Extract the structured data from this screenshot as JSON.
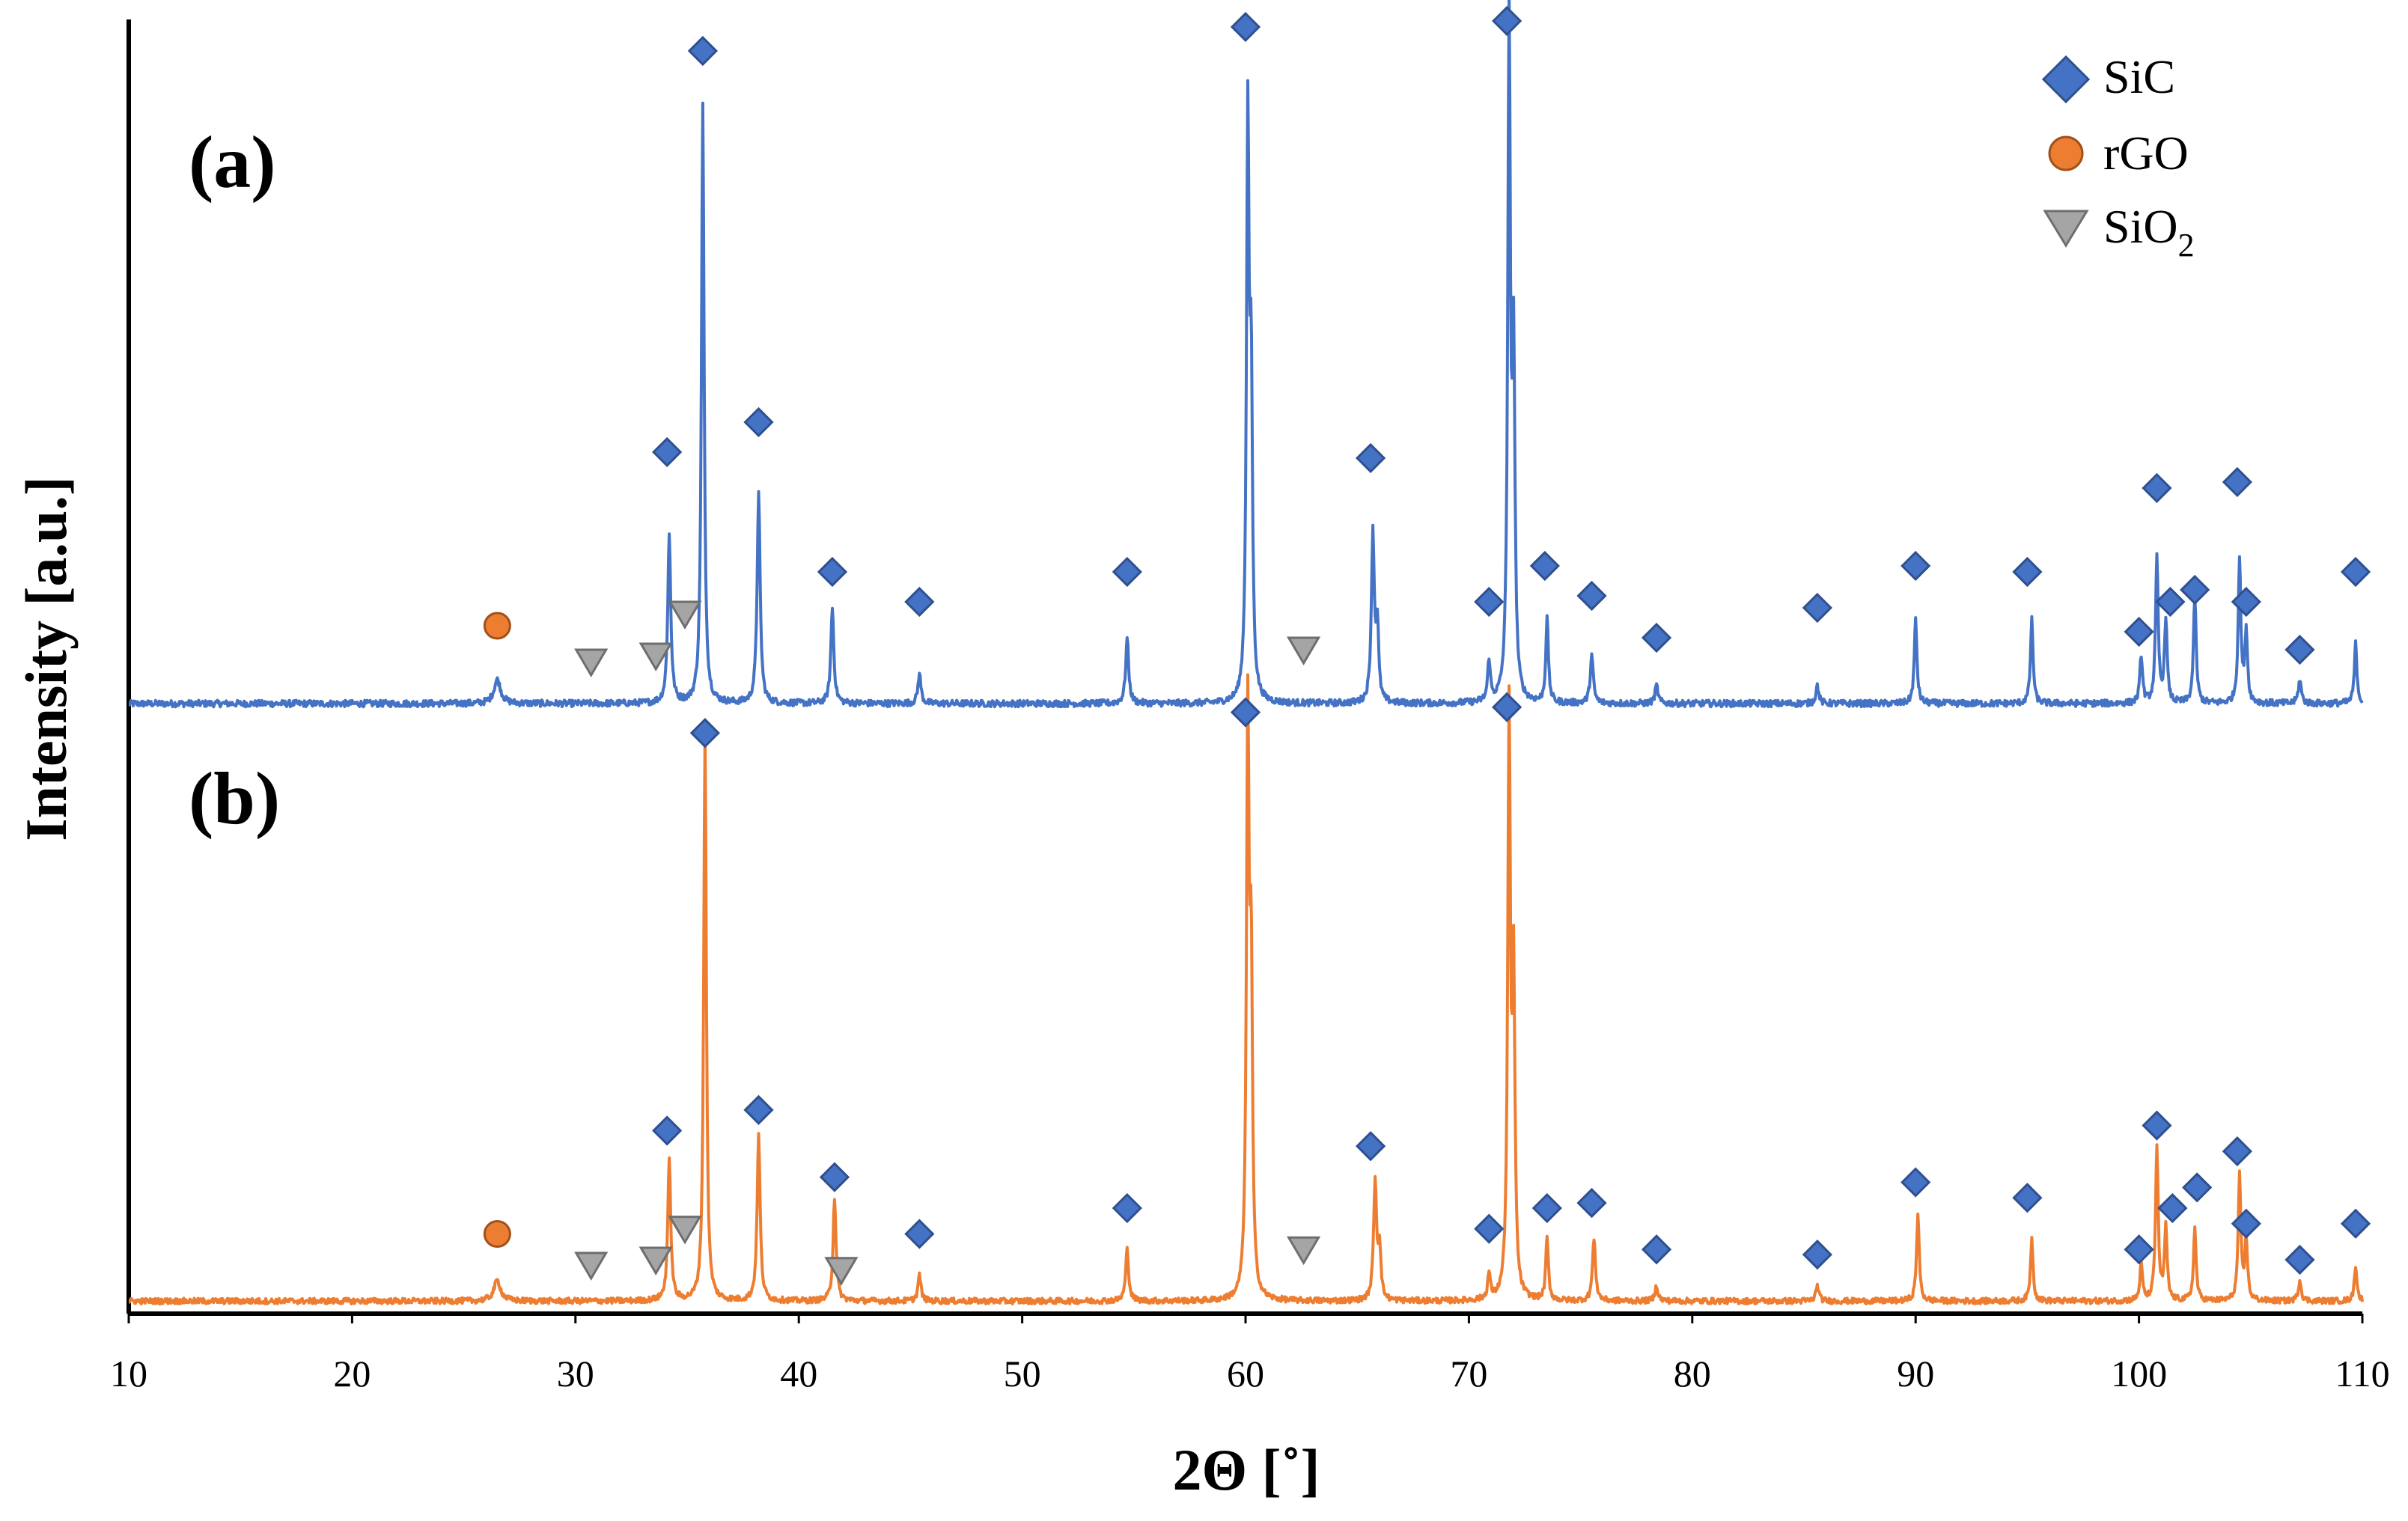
{
  "chart_data": {
    "type": "line",
    "xlabel": "2Θ [˚]",
    "ylabel": "Intensity [a.u.]",
    "xlim": [
      10,
      110
    ],
    "xticks": [
      10,
      20,
      30,
      40,
      50,
      60,
      70,
      80,
      90,
      100,
      110
    ],
    "grid": false,
    "legend_position": "top-right",
    "legend": [
      {
        "name": "SiC",
        "marker": "diamond",
        "color": "#4472C4"
      },
      {
        "name": "rGO",
        "marker": "circle",
        "color": "#ED7D31"
      },
      {
        "name": "SiO",
        "subscript": "2",
        "marker": "triangle-down",
        "color": "#A5A5A5"
      }
    ],
    "series": [
      {
        "name": "(a)",
        "color": "#4472C4",
        "baseline": 3,
        "peaks": [
          {
            "x": 26.5,
            "h": 4,
            "w": 0.18
          },
          {
            "x": 34.2,
            "h": 28,
            "w": 0.08
          },
          {
            "x": 35.7,
            "h": 100,
            "w": 0.07
          },
          {
            "x": 38.2,
            "h": 35,
            "w": 0.08
          },
          {
            "x": 41.5,
            "h": 16,
            "w": 0.08
          },
          {
            "x": 45.4,
            "h": 5,
            "w": 0.08
          },
          {
            "x": 54.7,
            "h": 11,
            "w": 0.08
          },
          {
            "x": 60.1,
            "h": 95,
            "w": 0.07
          },
          {
            "x": 60.25,
            "h": 50,
            "w": 0.07
          },
          {
            "x": 65.7,
            "h": 28,
            "w": 0.08
          },
          {
            "x": 65.9,
            "h": 12,
            "w": 0.07
          },
          {
            "x": 70.9,
            "h": 7,
            "w": 0.07
          },
          {
            "x": 71.8,
            "h": 113,
            "w": 0.07
          },
          {
            "x": 72.0,
            "h": 56,
            "w": 0.07
          },
          {
            "x": 73.5,
            "h": 14,
            "w": 0.07
          },
          {
            "x": 75.5,
            "h": 8,
            "w": 0.08
          },
          {
            "x": 78.4,
            "h": 3,
            "w": 0.08
          },
          {
            "x": 85.6,
            "h": 3,
            "w": 0.08
          },
          {
            "x": 90.0,
            "h": 14,
            "w": 0.07
          },
          {
            "x": 95.2,
            "h": 14,
            "w": 0.07
          },
          {
            "x": 100.1,
            "h": 8,
            "w": 0.07
          },
          {
            "x": 100.8,
            "h": 24,
            "w": 0.07
          },
          {
            "x": 101.2,
            "h": 14,
            "w": 0.07
          },
          {
            "x": 102.5,
            "h": 18,
            "w": 0.07
          },
          {
            "x": 104.5,
            "h": 24,
            "w": 0.07
          },
          {
            "x": 104.8,
            "h": 12,
            "w": 0.07
          },
          {
            "x": 107.2,
            "h": 4,
            "w": 0.08
          },
          {
            "x": 109.7,
            "h": 10,
            "w": 0.07
          }
        ],
        "markers": [
          {
            "type": "SiC",
            "x": [
              34.1,
              35.7,
              38.2,
              41.5,
              45.4,
              54.7,
              60.0,
              65.6,
              70.9,
              71.7,
              73.4,
              75.5,
              78.4,
              85.6,
              90.0,
              95.0,
              100.0,
              100.8,
              101.4,
              102.5,
              104.4,
              104.8,
              107.2,
              109.7
            ],
            "y": [
              45,
              112,
              50,
              25,
              20,
              25,
              116,
              44,
              20,
              117,
              26,
              21,
              14,
              19,
              26,
              25,
              15,
              39,
              20,
              22,
              40,
              20,
              12,
              25
            ]
          },
          {
            "type": "rGO",
            "x": [
              26.5
            ],
            "y": [
              16
            ]
          },
          {
            "type": "SiO2",
            "x": [
              30.7,
              33.6,
              34.9,
              62.6
            ],
            "y": [
              10,
              11,
              18,
              12
            ]
          }
        ]
      },
      {
        "name": "(b)",
        "color": "#ED7D31",
        "baseline": 2,
        "peaks": [
          {
            "x": 26.5,
            "h": 4,
            "w": 0.18
          },
          {
            "x": 34.2,
            "h": 27,
            "w": 0.08
          },
          {
            "x": 35.8,
            "h": 110,
            "w": 0.07
          },
          {
            "x": 38.2,
            "h": 32,
            "w": 0.08
          },
          {
            "x": 41.6,
            "h": 20,
            "w": 0.08
          },
          {
            "x": 45.4,
            "h": 5,
            "w": 0.08
          },
          {
            "x": 54.7,
            "h": 10,
            "w": 0.08
          },
          {
            "x": 60.1,
            "h": 111,
            "w": 0.07
          },
          {
            "x": 60.25,
            "h": 60,
            "w": 0.07
          },
          {
            "x": 65.8,
            "h": 23,
            "w": 0.08
          },
          {
            "x": 66.0,
            "h": 10,
            "w": 0.07
          },
          {
            "x": 70.9,
            "h": 5,
            "w": 0.07
          },
          {
            "x": 71.8,
            "h": 112,
            "w": 0.07
          },
          {
            "x": 72.0,
            "h": 60,
            "w": 0.07
          },
          {
            "x": 73.5,
            "h": 12,
            "w": 0.07
          },
          {
            "x": 75.6,
            "h": 12,
            "w": 0.08
          },
          {
            "x": 78.4,
            "h": 3,
            "w": 0.08
          },
          {
            "x": 85.6,
            "h": 3,
            "w": 0.08
          },
          {
            "x": 90.1,
            "h": 17,
            "w": 0.07
          },
          {
            "x": 95.2,
            "h": 12,
            "w": 0.07
          },
          {
            "x": 100.1,
            "h": 7,
            "w": 0.07
          },
          {
            "x": 100.8,
            "h": 30,
            "w": 0.07
          },
          {
            "x": 101.2,
            "h": 14,
            "w": 0.07
          },
          {
            "x": 102.5,
            "h": 14,
            "w": 0.07
          },
          {
            "x": 104.5,
            "h": 24,
            "w": 0.07
          },
          {
            "x": 104.8,
            "h": 12,
            "w": 0.07
          },
          {
            "x": 107.2,
            "h": 4,
            "w": 0.08
          },
          {
            "x": 109.7,
            "h": 7,
            "w": 0.07
          }
        ],
        "markers": [
          {
            "type": "SiC",
            "x": [
              34.1,
              35.8,
              38.2,
              41.6,
              45.4,
              54.7,
              60.0,
              65.6,
              70.9,
              71.7,
              73.5,
              75.5,
              78.4,
              85.6,
              90.0,
              95.0,
              100.0,
              100.8,
              101.5,
              102.6,
              104.4,
              104.8,
              107.2,
              109.7
            ],
            "y": [
              35,
              112,
              39,
              26,
              15,
              20,
              116,
              32,
              16,
              117,
              20,
              21,
              12,
              11,
              25,
              22,
              12,
              36,
              20,
              24,
              31,
              17,
              10,
              17
            ]
          },
          {
            "type": "rGO",
            "x": [
              26.5
            ],
            "y": [
              15
            ]
          },
          {
            "type": "SiO2",
            "x": [
              30.7,
              33.6,
              34.9,
              41.9
            ],
            "y": [
              9,
              10,
              16,
              8
            ]
          },
          {
            "type": "SiO2",
            "x": [
              62.6
            ],
            "y": [
              12
            ]
          }
        ]
      }
    ]
  }
}
